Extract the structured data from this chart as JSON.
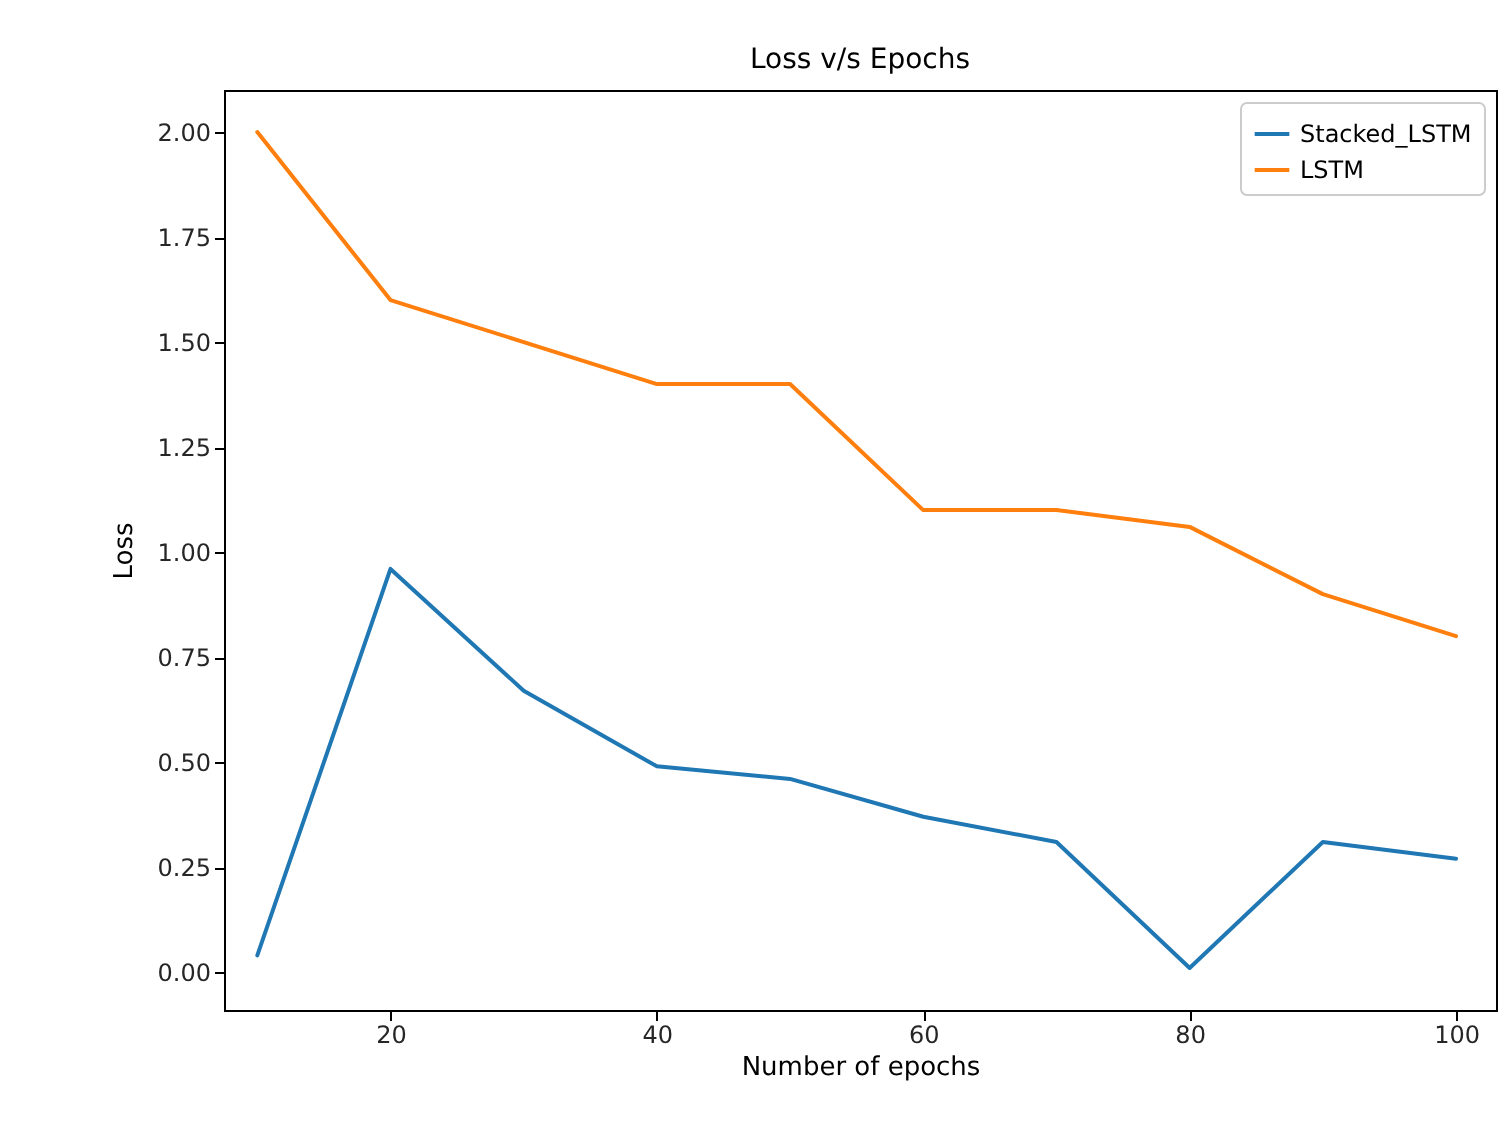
{
  "chart_data": {
    "type": "line",
    "title": "Loss v/s Epochs",
    "xlabel": "Number of epochs",
    "ylabel": "Loss",
    "x": [
      10,
      20,
      30,
      40,
      50,
      60,
      70,
      80,
      90,
      100
    ],
    "series": [
      {
        "name": "Stacked_LSTM",
        "color": "#1f77b4",
        "values": [
          0.04,
          0.96,
          0.67,
          0.49,
          0.46,
          0.37,
          0.31,
          0.01,
          0.31,
          0.27
        ]
      },
      {
        "name": "LSTM",
        "color": "#ff7f0e",
        "values": [
          2.0,
          1.6,
          1.5,
          1.4,
          1.4,
          1.1,
          1.1,
          1.06,
          0.9,
          0.8
        ]
      }
    ],
    "xlim": [
      7.5,
      103
    ],
    "ylim": [
      -0.09,
      2.1
    ],
    "xticks": [
      20,
      40,
      60,
      80,
      100
    ],
    "yticks": [
      {
        "value": 0,
        "label": "0.00"
      },
      {
        "value": 0.25,
        "label": "0.25"
      },
      {
        "value": 0.5,
        "label": "0.50"
      },
      {
        "value": 0.75,
        "label": "0.75"
      },
      {
        "value": 1,
        "label": "1.00"
      },
      {
        "value": 1.25,
        "label": "1.25"
      },
      {
        "value": 1.5,
        "label": "1.50"
      },
      {
        "value": 1.75,
        "label": "1.75"
      },
      {
        "value": 2,
        "label": "2.00"
      }
    ],
    "legend": "top right",
    "grid": false,
    "line_style": "solid"
  }
}
